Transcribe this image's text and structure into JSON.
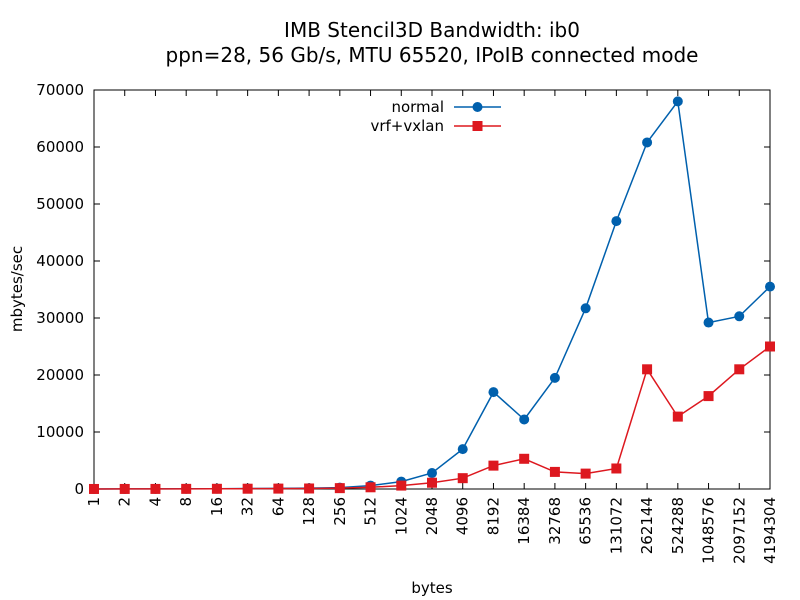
{
  "chart_data": {
    "type": "line",
    "title": "IMB Stencil3D Bandwidth: ib0",
    "subtitle": "ppn=28, 56 Gb/s, MTU 65520, IPoIB connected mode",
    "xlabel": "bytes",
    "ylabel": "mbytes/sec",
    "ylim": [
      0,
      70000
    ],
    "yticks": [
      "0",
      "10000",
      "20000",
      "30000",
      "40000",
      "50000",
      "60000",
      "70000"
    ],
    "categories": [
      "1",
      "2",
      "4",
      "8",
      "16",
      "32",
      "64",
      "128",
      "256",
      "512",
      "1024",
      "2048",
      "4096",
      "8192",
      "16384",
      "32768",
      "65536",
      "131072",
      "262144",
      "524288",
      "1048576",
      "2097152",
      "4194304"
    ],
    "grid": false,
    "legend_position": "top-center",
    "series": [
      {
        "name": "normal",
        "color": "#0060ad",
        "marker": "circle",
        "values": [
          5,
          10,
          20,
          40,
          60,
          80,
          110,
          150,
          250,
          600,
          1300,
          2800,
          7000,
          17000,
          12200,
          19500,
          31700,
          47000,
          60800,
          68000,
          29200,
          30300,
          35500
        ]
      },
      {
        "name": "vrf+vxlan",
        "color": "#dd181f",
        "marker": "square",
        "values": [
          5,
          10,
          15,
          25,
          35,
          50,
          70,
          90,
          150,
          300,
          600,
          1100,
          1900,
          4100,
          5300,
          3000,
          2700,
          3600,
          21000,
          12700,
          16300,
          21000,
          25000
        ]
      }
    ]
  }
}
